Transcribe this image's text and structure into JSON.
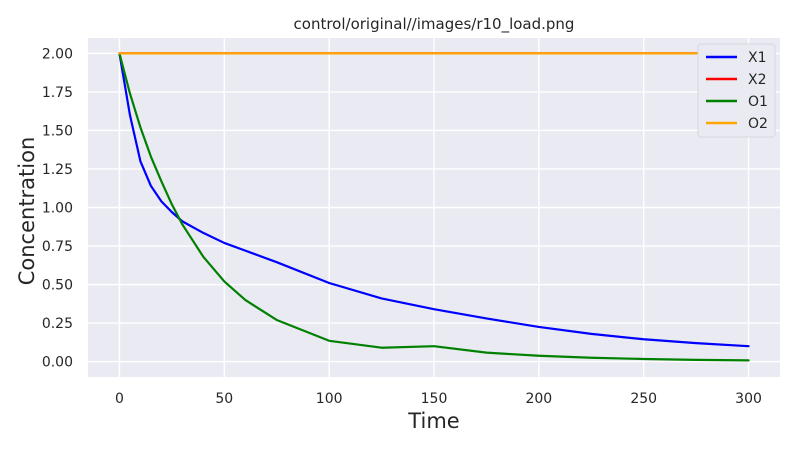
{
  "chart_data": {
    "type": "line",
    "title": "control/original//images/r10_load.png",
    "xlabel": "Time",
    "ylabel": "Concentration",
    "xlim": [
      -15,
      315
    ],
    "ylim": [
      -0.1,
      2.1
    ],
    "xticks": [
      0,
      50,
      100,
      150,
      200,
      250,
      300
    ],
    "yticks": [
      0.0,
      0.25,
      0.5,
      0.75,
      1.0,
      1.25,
      1.5,
      1.75,
      2.0
    ],
    "ytick_labels": [
      "0.00",
      "0.25",
      "0.50",
      "0.75",
      "1.00",
      "1.25",
      "1.50",
      "1.75",
      "2.00"
    ],
    "grid": true,
    "legend_position": "top-right",
    "x": [
      0,
      5,
      10,
      15,
      20,
      25,
      30,
      40,
      50,
      60,
      75,
      100,
      125,
      150,
      175,
      200,
      225,
      250,
      275,
      300
    ],
    "series": [
      {
        "name": "X1",
        "color": "#0000ff",
        "values": [
          2.0,
          1.6,
          1.3,
          1.14,
          1.04,
          0.97,
          0.91,
          0.835,
          0.77,
          0.72,
          0.645,
          0.51,
          0.41,
          0.34,
          0.28,
          0.225,
          0.18,
          0.145,
          0.12,
          0.1
        ]
      },
      {
        "name": "X2",
        "color": "#ff0000",
        "values": [
          2.0,
          2.0,
          2.0,
          2.0,
          2.0,
          2.0,
          2.0,
          2.0,
          2.0,
          2.0,
          2.0,
          2.0,
          2.0,
          2.0,
          2.0,
          2.0,
          2.0,
          2.0,
          2.0,
          2.0
        ]
      },
      {
        "name": "O1",
        "color": "#008000",
        "values": [
          2.0,
          1.74,
          1.52,
          1.33,
          1.17,
          1.02,
          0.89,
          0.68,
          0.52,
          0.4,
          0.27,
          0.135,
          0.09,
          0.1,
          0.058,
          0.038,
          0.025,
          0.017,
          0.011,
          0.008
        ]
      },
      {
        "name": "O2",
        "color": "#ffa500",
        "values": [
          2.0,
          2.0,
          2.0,
          2.0,
          2.0,
          2.0,
          2.0,
          2.0,
          2.0,
          2.0,
          2.0,
          2.0,
          2.0,
          2.0,
          2.0,
          2.0,
          2.0,
          2.0,
          2.0,
          2.0
        ]
      }
    ]
  }
}
